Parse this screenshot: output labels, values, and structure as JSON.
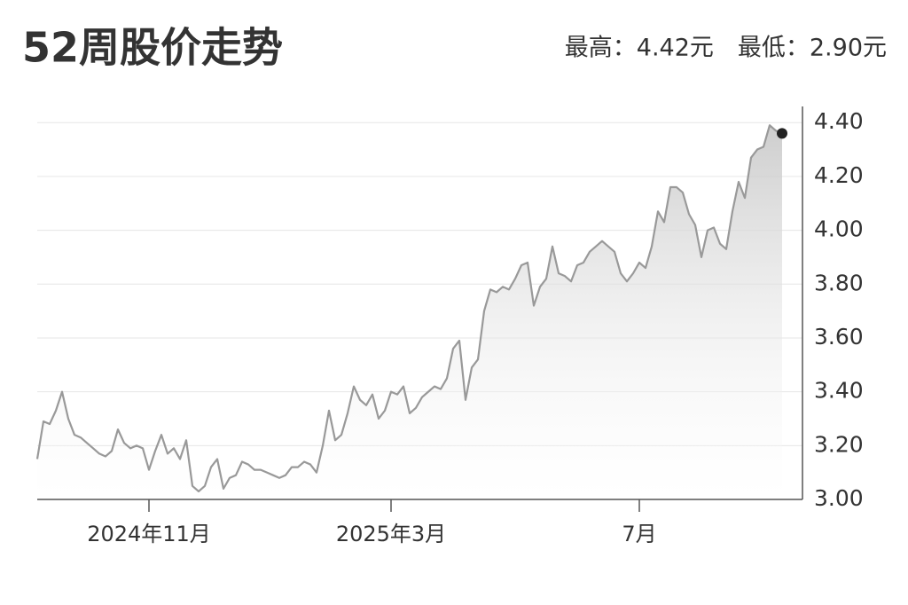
{
  "chart_data": {
    "type": "line",
    "title": "52周股价走势",
    "subtitle": "最高：4.42元　最低：2.90元",
    "categories": [
      null,
      null,
      null,
      null,
      null,
      null,
      null,
      null,
      null,
      null,
      null,
      null,
      null,
      null,
      null,
      null,
      null,
      null,
      "2024年11月",
      null,
      null,
      null,
      null,
      null,
      null,
      null,
      null,
      null,
      null,
      null,
      null,
      null,
      null,
      null,
      null,
      null,
      null,
      null,
      null,
      null,
      null,
      null,
      null,
      null,
      null,
      null,
      null,
      null,
      null,
      null,
      null,
      null,
      null,
      null,
      null,
      null,
      null,
      "2025年3月",
      null,
      null,
      null,
      null,
      null,
      null,
      null,
      null,
      null,
      null,
      null,
      null,
      null,
      null,
      null,
      null,
      null,
      null,
      null,
      null,
      null,
      null,
      null,
      null,
      null,
      null,
      null,
      null,
      null,
      null,
      null,
      null,
      null,
      null,
      null,
      null,
      null,
      null,
      null,
      "7月",
      null,
      null,
      null,
      null,
      null,
      null,
      null,
      null,
      null,
      null,
      null,
      null,
      null,
      null,
      null,
      null,
      null,
      null,
      null,
      null,
      null,
      null,
      null
    ],
    "series": [
      {
        "color": "#999999",
        "values": [
          3.15,
          3.29,
          3.28,
          3.33,
          3.4,
          3.3,
          3.24,
          3.23,
          3.21,
          3.19,
          3.17,
          3.16,
          3.18,
          3.26,
          3.21,
          3.19,
          3.2,
          3.19,
          3.11,
          3.18,
          3.24,
          3.17,
          3.19,
          3.15,
          3.22,
          3.05,
          3.03,
          3.05,
          3.12,
          3.15,
          3.04,
          3.08,
          3.09,
          3.14,
          3.13,
          3.11,
          3.11,
          3.1,
          3.09,
          3.08,
          3.09,
          3.12,
          3.12,
          3.14,
          3.13,
          3.1,
          3.2,
          3.33,
          3.22,
          3.24,
          3.32,
          3.42,
          3.37,
          3.35,
          3.39,
          3.3,
          3.33,
          3.4,
          3.39,
          3.42,
          3.32,
          3.34,
          3.38,
          3.4,
          3.42,
          3.41,
          3.45,
          3.56,
          3.59,
          3.37,
          3.49,
          3.52,
          3.7,
          3.78,
          3.77,
          3.79,
          3.78,
          3.82,
          3.87,
          3.88,
          3.72,
          3.79,
          3.82,
          3.94,
          3.84,
          3.83,
          3.81,
          3.87,
          3.88,
          3.92,
          3.94,
          3.96,
          3.94,
          3.92,
          3.84,
          3.81,
          3.84,
          3.88,
          3.86,
          3.94,
          4.07,
          4.03,
          4.16,
          4.16,
          4.14,
          4.06,
          4.02,
          3.9,
          4.0,
          4.01,
          3.95,
          3.93,
          4.07,
          4.18,
          4.12,
          4.27,
          4.3,
          4.31,
          4.39,
          4.37,
          4.36
        ]
      }
    ],
    "ylim": [
      3.0,
      4.46
    ],
    "yticks": [
      {
        "value": 3.0,
        "label": "3.00"
      },
      {
        "value": 3.2,
        "label": "3.20"
      },
      {
        "value": 3.4,
        "label": "3.40"
      },
      {
        "value": 3.6,
        "label": "3.60"
      },
      {
        "value": 3.8,
        "label": "3.80"
      },
      {
        "value": 4.0,
        "label": "4.00"
      },
      {
        "value": 4.2,
        "label": "4.20"
      },
      {
        "value": 4.4,
        "label": "4.40"
      }
    ],
    "grid": true
  }
}
